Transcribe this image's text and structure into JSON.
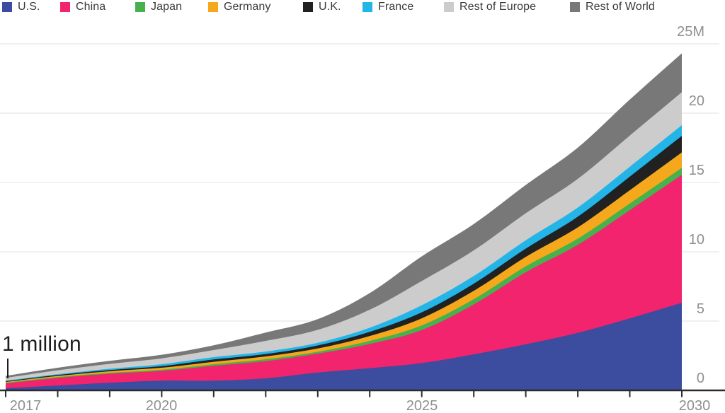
{
  "annotation": {
    "text": "1 million"
  },
  "legend": {
    "items": [
      {
        "label": "U.S.",
        "color": "#3c4c9f"
      },
      {
        "label": "China",
        "color": "#f2246d"
      },
      {
        "label": "Japan",
        "color": "#48b14c"
      },
      {
        "label": "Germany",
        "color": "#f6a81c"
      },
      {
        "label": "U.K.",
        "color": "#212121"
      },
      {
        "label": "France",
        "color": "#23b5e8"
      },
      {
        "label": "Rest of Europe",
        "color": "#cccccc"
      },
      {
        "label": "Rest of World",
        "color": "#787878"
      }
    ]
  },
  "chart_data": {
    "type": "area",
    "stacked": true,
    "title": "",
    "xlabel": "",
    "ylabel": "",
    "unit": "millions of vehicles",
    "x": [
      2017,
      2018,
      2019,
      2020,
      2021,
      2022,
      2023,
      2024,
      2025,
      2026,
      2027,
      2028,
      2029,
      2030
    ],
    "series": [
      {
        "name": "U.S.",
        "color": "#3c4c9f",
        "values": [
          0.15,
          0.35,
          0.55,
          0.7,
          0.7,
          0.87,
          1.29,
          1.6,
          1.97,
          2.6,
          3.33,
          4.15,
          5.2,
          6.32
        ]
      },
      {
        "name": "China",
        "color": "#f2246d",
        "values": [
          0.35,
          0.55,
          0.65,
          0.71,
          1.07,
          1.24,
          1.36,
          1.75,
          2.38,
          3.6,
          5.19,
          6.35,
          7.8,
          9.23
        ]
      },
      {
        "name": "Japan",
        "color": "#48b14c",
        "values": [
          0.05,
          0.06,
          0.07,
          0.08,
          0.12,
          0.14,
          0.14,
          0.22,
          0.34,
          0.38,
          0.43,
          0.45,
          0.48,
          0.51
        ]
      },
      {
        "name": "Germany",
        "color": "#f6a81c",
        "values": [
          0.06,
          0.08,
          0.11,
          0.14,
          0.17,
          0.2,
          0.23,
          0.35,
          0.51,
          0.6,
          0.68,
          0.81,
          0.96,
          1.11
        ]
      },
      {
        "name": "U.K.",
        "color": "#212121",
        "values": [
          0.05,
          0.07,
          0.09,
          0.12,
          0.17,
          0.17,
          0.22,
          0.3,
          0.43,
          0.52,
          0.6,
          0.77,
          0.98,
          1.19
        ]
      },
      {
        "name": "France",
        "color": "#23b5e8",
        "values": [
          0.04,
          0.06,
          0.09,
          0.14,
          0.17,
          0.18,
          0.19,
          0.3,
          0.51,
          0.55,
          0.6,
          0.66,
          0.71,
          0.77
        ]
      },
      {
        "name": "Rest of Europe",
        "color": "#cccccc",
        "values": [
          0.2,
          0.28,
          0.35,
          0.42,
          0.51,
          0.77,
          0.94,
          1.3,
          1.75,
          1.85,
          1.95,
          2.07,
          2.25,
          2.38
        ]
      },
      {
        "name": "Rest of World",
        "color": "#787878",
        "values": [
          0.14,
          0.18,
          0.22,
          0.26,
          0.34,
          0.6,
          0.77,
          1.2,
          1.78,
          1.9,
          2.04,
          2.25,
          2.6,
          2.81
        ]
      }
    ],
    "ylim": [
      0,
      25
    ],
    "yticks": [
      0,
      5,
      10,
      15,
      20,
      25
    ],
    "yticklabels": [
      "0",
      "5",
      "10",
      "15",
      "20",
      "25M"
    ],
    "ytick_side": "right",
    "xticks_years": [
      2017,
      2018,
      2019,
      2020,
      2021,
      2022,
      2023,
      2024,
      2025,
      2026,
      2027,
      2028,
      2029,
      2030
    ],
    "xticklabels": [
      "2017",
      "2020",
      "2025",
      "2030"
    ],
    "xticklabel_years": [
      2017,
      2020,
      2025,
      2030
    ],
    "grid": "horizontal",
    "legend_position": "top",
    "annotations": [
      {
        "text": "1 million",
        "year": 2017,
        "value": 1.04
      }
    ]
  }
}
